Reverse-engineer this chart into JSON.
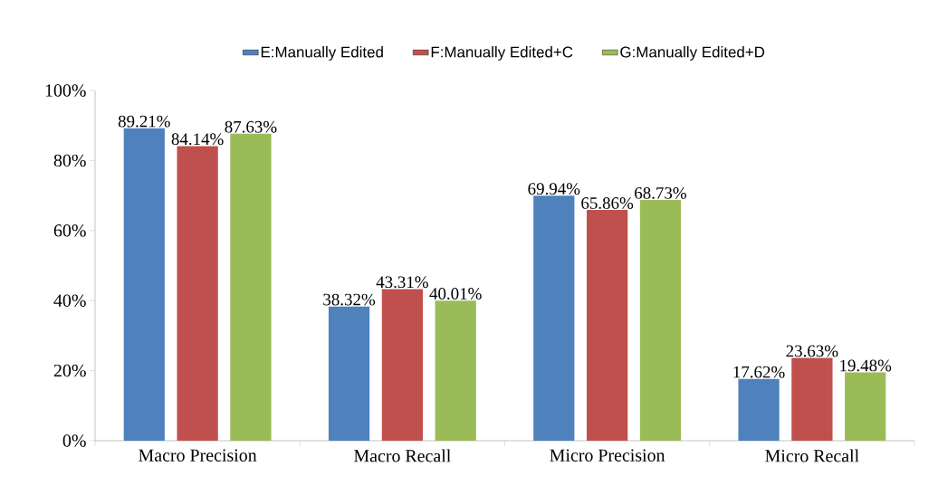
{
  "chart_data": {
    "type": "bar",
    "categories": [
      "Macro Precision",
      "Macro Recall",
      "Micro Precision",
      "Micro Recall"
    ],
    "series": [
      {
        "name": "E:Manually Edited",
        "color": "#4f81bd",
        "values": [
          89.21,
          38.32,
          69.94,
          17.62
        ],
        "value_labels": [
          "89.21%",
          "38.32%",
          "69.94%",
          "17.62%"
        ]
      },
      {
        "name": "F:Manually Edited+C",
        "color": "#c0504d",
        "values": [
          84.14,
          43.31,
          65.86,
          23.63
        ],
        "value_labels": [
          "84.14%",
          "43.31%",
          "65.86%",
          "23.63%"
        ]
      },
      {
        "name": "G:Manually Edited+D",
        "color": "#9bbb59",
        "values": [
          87.63,
          40.01,
          68.73,
          19.48
        ],
        "value_labels": [
          "87.63%",
          "40.01%",
          "68.73%",
          "19.48%"
        ]
      }
    ],
    "ylim": [
      0,
      100
    ],
    "yticks": [
      {
        "value": 0,
        "label": "0%"
      },
      {
        "value": 20,
        "label": "20%"
      },
      {
        "value": 40,
        "label": "40%"
      },
      {
        "value": 60,
        "label": "60%"
      },
      {
        "value": 80,
        "label": "80%"
      },
      {
        "value": 100,
        "label": "100%"
      }
    ],
    "grid": false,
    "legend": "top"
  }
}
